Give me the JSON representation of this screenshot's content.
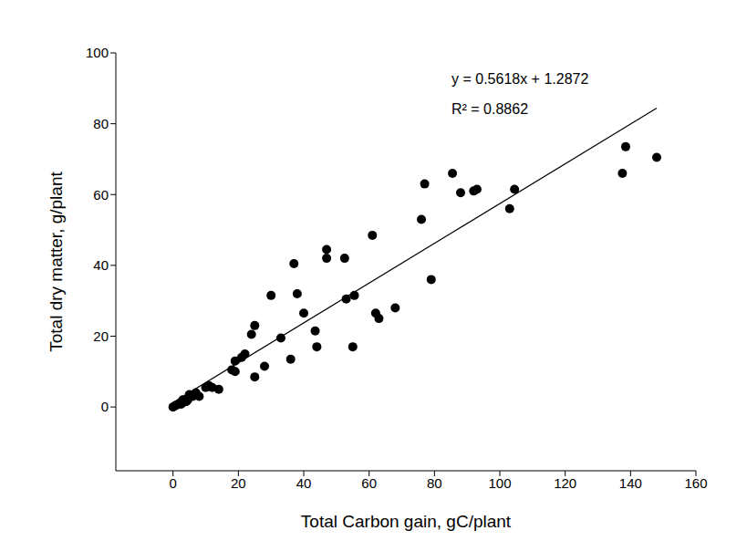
{
  "chart_data": {
    "type": "scatter",
    "x_label": "Total Carbon gain, gC/plant",
    "y_label": "Total dry matter, g/plant",
    "annotations": [
      "y = 0.5618x + 1.2872",
      "R² = 0.8862"
    ],
    "x": [
      0,
      0.5,
      1,
      2,
      2.5,
      3,
      4,
      4.5,
      5,
      6,
      7,
      8,
      10,
      11,
      12,
      14,
      18,
      19,
      19,
      21,
      22,
      24,
      25,
      25,
      28,
      30,
      33,
      36,
      37,
      38,
      40,
      43.5,
      44,
      47,
      47,
      52.5,
      53,
      55,
      55.5,
      61,
      62,
      63,
      68,
      76,
      77,
      79,
      85.5,
      88,
      92,
      93,
      103,
      104.5,
      137.5,
      138.5,
      148
    ],
    "values": [
      0,
      0.3,
      0.5,
      1,
      0.8,
      2,
      1.5,
      2,
      3.5,
      3,
      4,
      3,
      5.5,
      6,
      5.5,
      5,
      10.5,
      10,
      13,
      14,
      15,
      20.5,
      23,
      8.5,
      11.5,
      31.5,
      19.5,
      13.5,
      40.5,
      32,
      26.5,
      21.5,
      17,
      44.5,
      42,
      42,
      30.5,
      17,
      31.5,
      48.5,
      26.5,
      25,
      28,
      53,
      63,
      36,
      66,
      60.5,
      61,
      61.5,
      56,
      61.5,
      66,
      73.5,
      70.5
    ],
    "color": "#000000",
    "marker": "circle",
    "trendline": {
      "x": [
        0,
        148
      ],
      "values": [
        1.2872,
        84.43
      ],
      "color": "#000000",
      "line_style": "solid"
    },
    "xlim": [
      -17.5,
      160
    ],
    "xticks": [
      0,
      20,
      40,
      60,
      80,
      100,
      120,
      140,
      160
    ],
    "ylim": [
      -18,
      100
    ],
    "yticks": [
      0,
      20,
      40,
      60,
      80,
      100
    ],
    "grid": false
  }
}
